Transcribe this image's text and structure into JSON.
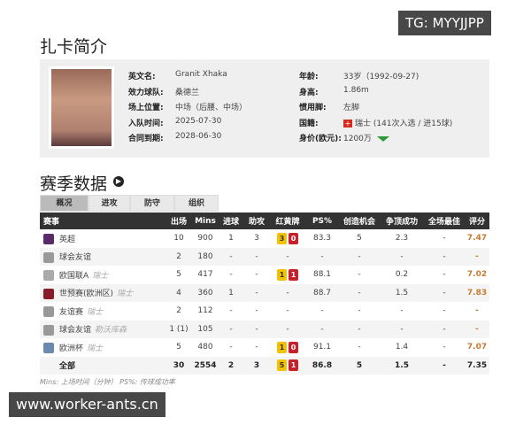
{
  "watermarks": {
    "top": "TG: MYYJJPP",
    "bottom": "www.worker-ants.cn"
  },
  "profile": {
    "title": "扎卡简介",
    "left": [
      {
        "label": "英文名:",
        "value": "Granit Xhaka"
      },
      {
        "label": "效力球队:",
        "value": "桑德兰"
      },
      {
        "label": "场上位置:",
        "value": "中场（后腰、中场）"
      },
      {
        "label": "入队时间:",
        "value": "2025-07-30"
      },
      {
        "label": "合同到期:",
        "value": "2028-06-30"
      }
    ],
    "right": [
      {
        "label": "年龄:",
        "value": "33岁（1992-09-27)"
      },
      {
        "label": "身高:",
        "value": "1.86m"
      },
      {
        "label": "惯用脚:",
        "value": "左脚"
      },
      {
        "label": "国籍:",
        "value": "瑞士 (141次入选 / 进15球)"
      },
      {
        "label": "身价(欧元):",
        "value": "1200万"
      }
    ],
    "value_trend": "down",
    "colors": {
      "trend": "#2e9a3a",
      "flag": "#d52b1e"
    }
  },
  "season": {
    "title": "赛季数据",
    "tabs": [
      "概况",
      "进攻",
      "防守",
      "组织"
    ],
    "active_tab": "概况",
    "headers": [
      "赛事",
      "出场",
      "Mins",
      "进球",
      "助攻",
      "红黄牌",
      "PS%",
      "创造机会",
      "争顶成功",
      "全场最佳",
      "评分"
    ],
    "rows": [
      {
        "comp": "英超",
        "sub": "",
        "icon": "premier-league-icon",
        "apps": "10",
        "mins": "900",
        "goals": "1",
        "assists": "3",
        "yellow": "3",
        "red": "0",
        "ps": "83.3",
        "chances": "5",
        "aerials": "2.3",
        "motm": "-",
        "rating": "7.47"
      },
      {
        "comp": "球会友谊",
        "sub": "",
        "icon": "friendly-icon",
        "apps": "2",
        "mins": "180",
        "goals": "-",
        "assists": "-",
        "yellow": "",
        "red": "",
        "ps": "-",
        "chances": "-",
        "aerials": "-",
        "motm": "-",
        "rating": "-"
      },
      {
        "comp": "欧国联A",
        "sub": "瑞士",
        "icon": "nations-league-icon",
        "apps": "5",
        "mins": "417",
        "goals": "-",
        "assists": "-",
        "yellow": "1",
        "red": "1",
        "ps": "88.1",
        "chances": "-",
        "aerials": "0.2",
        "motm": "-",
        "rating": "7.02"
      },
      {
        "comp": "世预赛(欧洲区)",
        "sub": "瑞士",
        "icon": "world-cup-qualifier-icon",
        "apps": "4",
        "mins": "360",
        "goals": "1",
        "assists": "-",
        "yellow": "",
        "red": "",
        "ps": "88.7",
        "chances": "-",
        "aerials": "1.5",
        "motm": "-",
        "rating": "7.83"
      },
      {
        "comp": "友谊赛",
        "sub": "瑞士",
        "icon": "friendly-icon",
        "apps": "2",
        "mins": "112",
        "goals": "-",
        "assists": "-",
        "yellow": "",
        "red": "",
        "ps": "-",
        "chances": "-",
        "aerials": "-",
        "motm": "-",
        "rating": "-"
      },
      {
        "comp": "球会友谊",
        "sub": "勒沃库森",
        "icon": "friendly-icon",
        "apps": "1 (1)",
        "mins": "105",
        "goals": "-",
        "assists": "-",
        "yellow": "",
        "red": "",
        "ps": "-",
        "chances": "-",
        "aerials": "-",
        "motm": "-",
        "rating": "-"
      },
      {
        "comp": "欧洲杯",
        "sub": "瑞士",
        "icon": "euro-icon",
        "apps": "5",
        "mins": "480",
        "goals": "-",
        "assists": "-",
        "yellow": "1",
        "red": "0",
        "ps": "91.1",
        "chances": "-",
        "aerials": "1.4",
        "motm": "-",
        "rating": "7.07"
      }
    ],
    "total": {
      "comp": "全部",
      "apps": "30",
      "mins": "2554",
      "goals": "2",
      "assists": "3",
      "yellow": "5",
      "red": "1",
      "ps": "86.8",
      "chances": "5",
      "aerials": "1.5",
      "motm": "-",
      "rating": "7.35"
    },
    "footnote": "Mins: 上场时间（分钟）      PS%: 传球成功率"
  }
}
